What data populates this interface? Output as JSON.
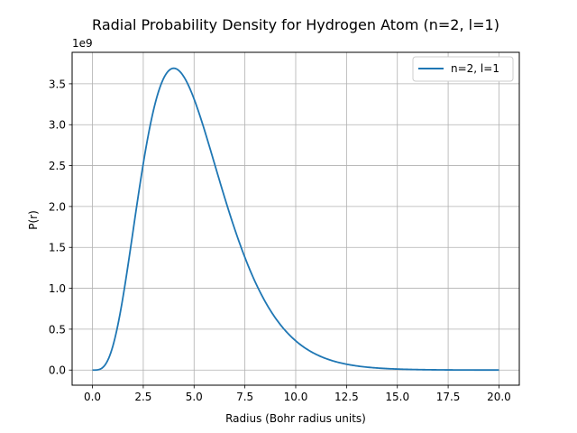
{
  "chart_data": {
    "type": "line",
    "title": "Radial Probability Density for Hydrogen Atom (n=2, l=1)",
    "xlabel": "Radius (Bohr radius units)",
    "ylabel": "P(r)",
    "y_offset_label": "1e9",
    "xlim": [
      -1.0,
      21.0
    ],
    "ylim": [
      -0.185,
      3.885
    ],
    "x_ticks": [
      0.0,
      2.5,
      5.0,
      7.5,
      10.0,
      12.5,
      15.0,
      17.5,
      20.0
    ],
    "x_tick_labels": [
      "0.0",
      "2.5",
      "5.0",
      "7.5",
      "10.0",
      "12.5",
      "15.0",
      "17.5",
      "20.0"
    ],
    "y_ticks": [
      0.0,
      0.5,
      1.0,
      1.5,
      2.0,
      2.5,
      3.0,
      3.5
    ],
    "y_tick_labels": [
      "0.0",
      "0.5",
      "1.0",
      "1.5",
      "2.0",
      "2.5",
      "3.0",
      "3.5"
    ],
    "grid": true,
    "legend_position": "top-right",
    "series": [
      {
        "name": "n=2, l=1",
        "color": "#1f77b4",
        "function": "r^4 * exp(-r)",
        "peak": 3.69,
        "x_range": [
          0,
          20
        ]
      }
    ]
  }
}
